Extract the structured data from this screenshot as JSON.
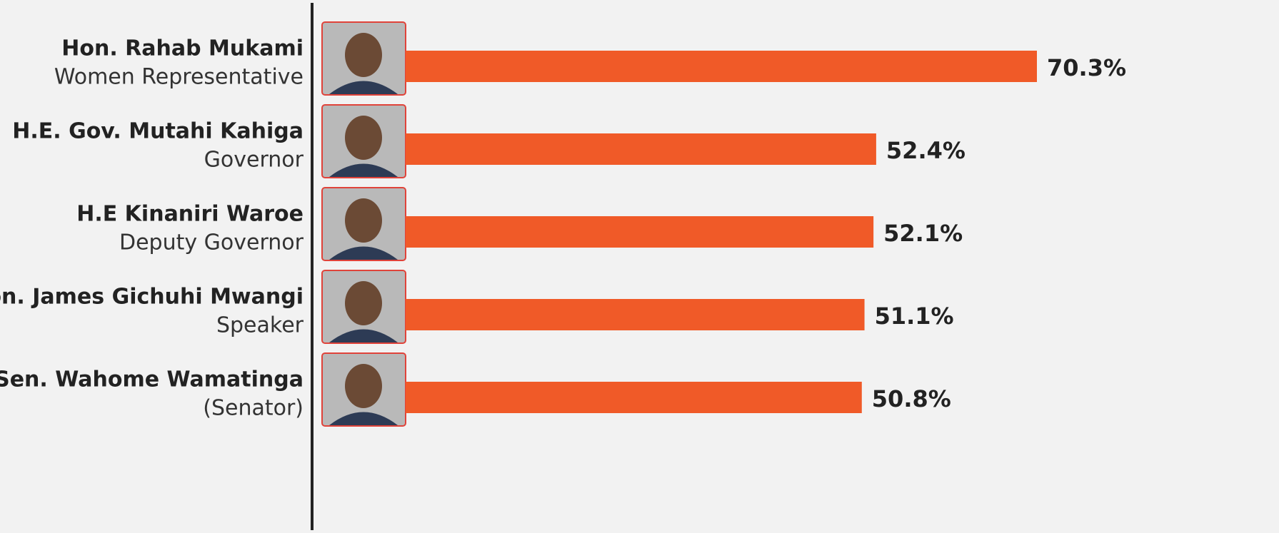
{
  "chart_data": {
    "type": "bar",
    "orientation": "horizontal",
    "categories": [
      "Hon. Rahab Mukami",
      "H.E. Gov. Mutahi Kahiga",
      "H.E Kinaniri Waroe",
      "Hon. James Gichuhi Mwangi",
      "Sen. Wahome Wamatinga"
    ],
    "roles": [
      "Women Representative",
      "Governor",
      "Deputy Governor",
      "Speaker",
      "(Senator)"
    ],
    "values": [
      70.3,
      52.4,
      52.1,
      51.1,
      50.8
    ],
    "value_labels": [
      "70.3%",
      "52.4%",
      "52.1%",
      "51.1%",
      "50.8%"
    ],
    "color": "#f05a28"
  }
}
